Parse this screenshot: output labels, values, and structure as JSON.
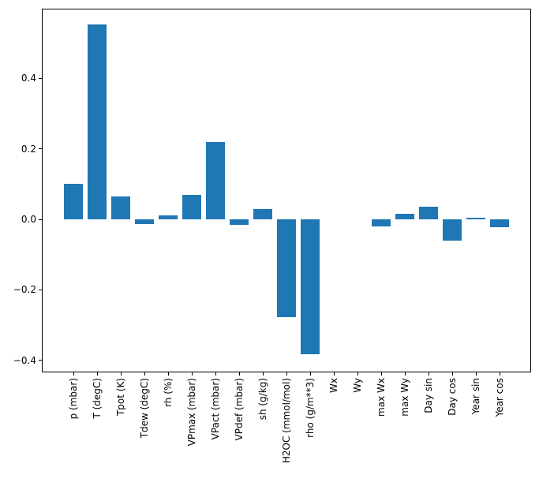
{
  "chart_data": {
    "type": "bar",
    "title": "",
    "xlabel": "",
    "ylabel": "",
    "categories": [
      "p (mbar)",
      "T (degC)",
      "Tpot (K)",
      "Tdew (degC)",
      "rh (%)",
      "VPmax (mbar)",
      "VPact (mbar)",
      "VPdef (mbar)",
      "sh (g/kg)",
      "H2OC (mmol/mol)",
      "rho (g/m**3)",
      "Wx",
      "Wy",
      "max Wx",
      "max Wy",
      "Day sin",
      "Day cos",
      "Year sin",
      "Year cos"
    ],
    "values": [
      0.1,
      0.554,
      0.065,
      -0.013,
      0.012,
      0.069,
      0.22,
      -0.016,
      0.03,
      -0.278,
      -0.383,
      0.0,
      0.0,
      -0.02,
      0.016,
      0.036,
      -0.061,
      0.004,
      -0.021
    ],
    "ylim": [
      -0.434,
      0.598
    ],
    "yticks": {
      "values": [
        0.4,
        0.2,
        0.0,
        -0.2,
        -0.4
      ],
      "labels": [
        "0.4",
        "0.2",
        "0.0",
        "−0.2",
        "−0.4"
      ]
    },
    "bar_color": "#1f77b4",
    "spine_color": "#000000",
    "background_color": "#ffffff",
    "grid": false,
    "legend": null,
    "x_tick_label_rotation_deg": 90
  }
}
